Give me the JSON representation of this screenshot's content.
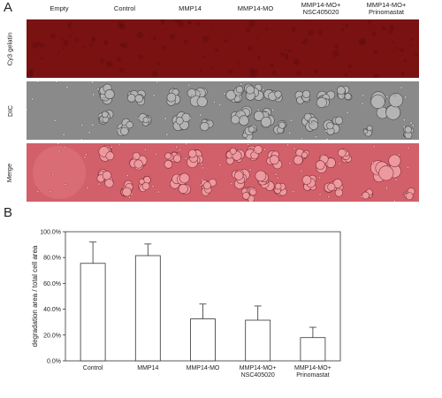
{
  "panel_a": {
    "label": "A",
    "columns": [
      "Empty",
      "Control",
      "MMP14",
      "MMP14-MO",
      "MMP14-MO+\nNSC405020",
      "MMP14-MO+\nPrinomastat"
    ],
    "rows": [
      "Cy3 gelatin",
      "DIC",
      "Merge"
    ],
    "colors": {
      "gelatin": "#7a1212",
      "dic": "#8a8a8a",
      "merge": "#d2606a"
    }
  },
  "panel_b": {
    "label": "B"
  },
  "chart_data": {
    "type": "bar",
    "categories": [
      "Control",
      "MMP14",
      "MMP14-MO",
      "MMP14-MO+\nNSC405020",
      "MMP14-MO+\nPrinomastat"
    ],
    "values": [
      0.755,
      0.815,
      0.325,
      0.315,
      0.18
    ],
    "errors": [
      0.165,
      0.09,
      0.115,
      0.11,
      0.08
    ],
    "ylabel": "degradation area / total cell area",
    "xlabel": "",
    "ylim": [
      0,
      1.0
    ],
    "yticks": [
      "0.0%",
      "20.0%",
      "40.0%",
      "60.0%",
      "80.0%",
      "100.0%"
    ],
    "grid": false
  }
}
